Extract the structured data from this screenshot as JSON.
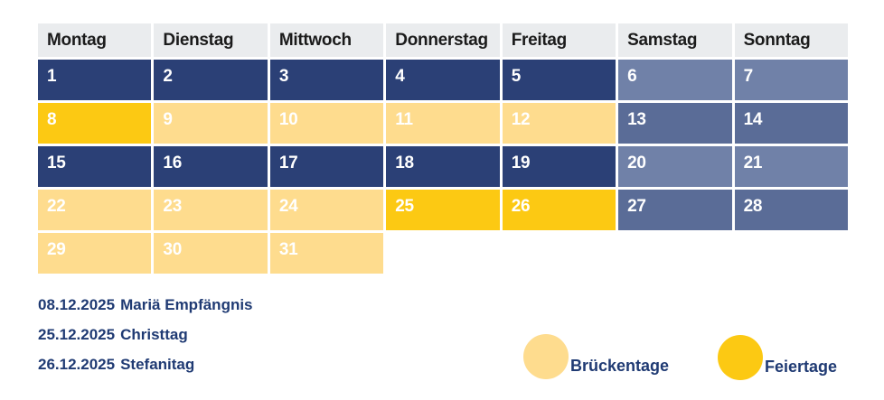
{
  "colors": {
    "workday": "#2B4076",
    "weekend_light": "#7081A8",
    "weekend_dark": "#5A6C97",
    "holiday": "#FCC913",
    "bridge_day": "#FEDC8E",
    "header_background": "#EAECEE",
    "header_text": "#1B1B1B",
    "text_navy": "#1F3A73"
  },
  "calendar": {
    "weekdays": [
      "Montag",
      "Dienstag",
      "Mittwoch",
      "Donnerstag",
      "Freitag",
      "Samstag",
      "Sonntag"
    ],
    "days": [
      {
        "day": "1",
        "type": "workday"
      },
      {
        "day": "2",
        "type": "workday"
      },
      {
        "day": "3",
        "type": "workday"
      },
      {
        "day": "4",
        "type": "workday"
      },
      {
        "day": "5",
        "type": "workday"
      },
      {
        "day": "6",
        "type": "weekend_light"
      },
      {
        "day": "7",
        "type": "weekend_light"
      },
      {
        "day": "8",
        "type": "holiday"
      },
      {
        "day": "9",
        "type": "bridge"
      },
      {
        "day": "10",
        "type": "bridge"
      },
      {
        "day": "11",
        "type": "bridge"
      },
      {
        "day": "12",
        "type": "bridge"
      },
      {
        "day": "13",
        "type": "weekend_dark"
      },
      {
        "day": "14",
        "type": "weekend_dark"
      },
      {
        "day": "15",
        "type": "workday"
      },
      {
        "day": "16",
        "type": "workday"
      },
      {
        "day": "17",
        "type": "workday"
      },
      {
        "day": "18",
        "type": "workday"
      },
      {
        "day": "19",
        "type": "workday"
      },
      {
        "day": "20",
        "type": "weekend_light"
      },
      {
        "day": "21",
        "type": "weekend_light"
      },
      {
        "day": "22",
        "type": "bridge"
      },
      {
        "day": "23",
        "type": "bridge"
      },
      {
        "day": "24",
        "type": "bridge"
      },
      {
        "day": "25",
        "type": "holiday"
      },
      {
        "day": "26",
        "type": "holiday"
      },
      {
        "day": "27",
        "type": "weekend_dark"
      },
      {
        "day": "28",
        "type": "weekend_dark"
      },
      {
        "day": "29",
        "type": "bridge"
      },
      {
        "day": "30",
        "type": "bridge"
      },
      {
        "day": "31",
        "type": "bridge"
      }
    ]
  },
  "holidays": [
    {
      "date": "08.12.2025",
      "name": "Mariä Empfängnis"
    },
    {
      "date": "25.12.2025",
      "name": "Christtag"
    },
    {
      "date": "26.12.2025",
      "name": "Stefanitag"
    }
  ],
  "legend": {
    "bridge": {
      "label": "Brückentage",
      "color": "#FEDC8E"
    },
    "holiday": {
      "label": "Feiertage",
      "color": "#FCC913"
    }
  }
}
